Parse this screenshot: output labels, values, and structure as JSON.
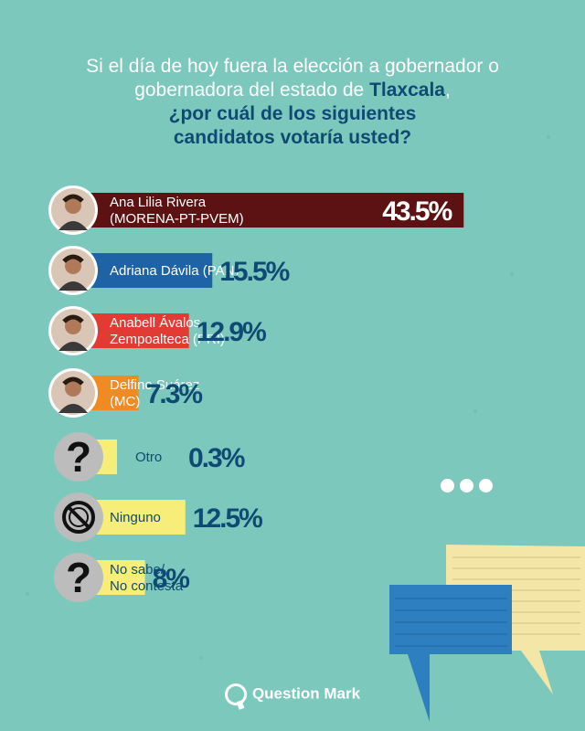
{
  "title": {
    "line1": "Si el día de hoy fuera la elección a gobernador o",
    "line2_pre": "gobernadora del estado de ",
    "line2_highlight": "Tlaxcala",
    "line2_post": ",",
    "question1": "¿por cuál de los siguientes",
    "question2": "candidatos votaría usted?"
  },
  "brand": "Question Mark",
  "colors": {
    "background": "#7cc8bd",
    "morena": "#5c1212",
    "pan": "#1e63a6",
    "pri": "#e23b33",
    "mc": "#f08a24",
    "yellow": "#f6ee78",
    "pct_dark": "#0f4a74",
    "pct_white": "#ffffff"
  },
  "chart_data": {
    "type": "bar",
    "orientation": "horizontal",
    "categories": [
      "Ana Lilia Rivera (MORENA-PT-PVEM)",
      "Adriana Dávila (PAN)",
      "Anabell Ávalos Zempoalteca (PRI)",
      "Delfino Suárez (MC)",
      "Otro",
      "Ninguno",
      "No sabe/ No contesta"
    ],
    "values": [
      43.5,
      15.5,
      12.9,
      7.3,
      0.3,
      12.5,
      8
    ],
    "value_labels": [
      "43.5%",
      "15.5%",
      "12.9%",
      "7.3%",
      "0.3%",
      "12.5%",
      "8%"
    ],
    "label_lines": [
      [
        "Ana Lilia Rivera",
        "(MORENA-PT-PVEM)"
      ],
      [
        "Adriana Dávila (PAN)"
      ],
      [
        "Anabell Ávalos",
        "Zempoalteca (PRI)"
      ],
      [
        "Delfino Suárez",
        "(MC)"
      ],
      [
        "Otro"
      ],
      [
        "Ninguno"
      ],
      [
        "No sabe/",
        "No contesta"
      ]
    ],
    "bar_colors": [
      "#5c1212",
      "#1e63a6",
      "#e23b33",
      "#f08a24",
      "#f6ee78",
      "#f6ee78",
      "#f6ee78"
    ],
    "label_colors": [
      "#ffffff",
      "#ffffff",
      "#ffffff",
      "#ffffff",
      "#0f4a74",
      "#0f4a74",
      "#0f4a74"
    ],
    "icons": [
      "photo-avatar-icon",
      "photo-avatar-icon",
      "photo-avatar-icon",
      "photo-avatar-icon",
      "question-icon",
      "no-symbol-icon",
      "question-icon"
    ],
    "xlim": [
      0,
      45
    ]
  }
}
